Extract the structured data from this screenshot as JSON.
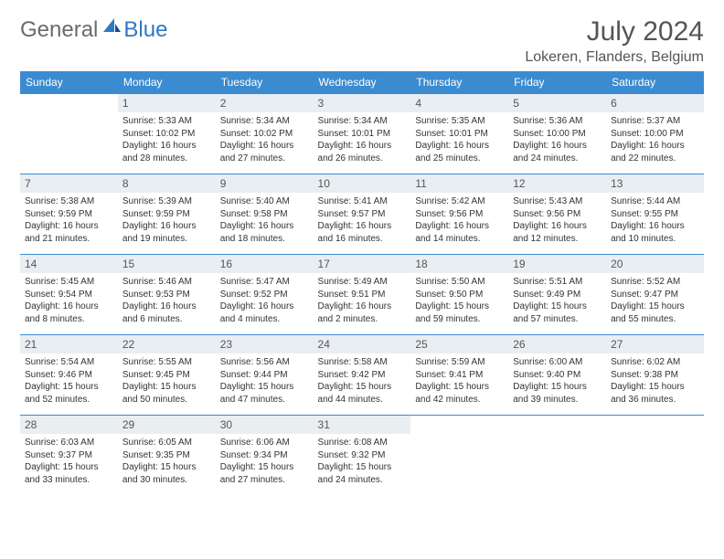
{
  "brand": {
    "general": "General",
    "blue": "Blue"
  },
  "title": "July 2024",
  "location": "Lokeren, Flanders, Belgium",
  "weekdays": [
    "Sunday",
    "Monday",
    "Tuesday",
    "Wednesday",
    "Thursday",
    "Friday",
    "Saturday"
  ],
  "colors": {
    "header_bg": "#3b8bd0",
    "header_text": "#ffffff",
    "daynum_bg": "#e9eef2",
    "border": "#3b8bd0",
    "brand_blue": "#2f78c3",
    "brand_gray": "#6b6b6b"
  },
  "grid": [
    [
      null,
      {
        "n": "1",
        "sr": "Sunrise: 5:33 AM",
        "ss": "Sunset: 10:02 PM",
        "d1": "Daylight: 16 hours",
        "d2": "and 28 minutes."
      },
      {
        "n": "2",
        "sr": "Sunrise: 5:34 AM",
        "ss": "Sunset: 10:02 PM",
        "d1": "Daylight: 16 hours",
        "d2": "and 27 minutes."
      },
      {
        "n": "3",
        "sr": "Sunrise: 5:34 AM",
        "ss": "Sunset: 10:01 PM",
        "d1": "Daylight: 16 hours",
        "d2": "and 26 minutes."
      },
      {
        "n": "4",
        "sr": "Sunrise: 5:35 AM",
        "ss": "Sunset: 10:01 PM",
        "d1": "Daylight: 16 hours",
        "d2": "and 25 minutes."
      },
      {
        "n": "5",
        "sr": "Sunrise: 5:36 AM",
        "ss": "Sunset: 10:00 PM",
        "d1": "Daylight: 16 hours",
        "d2": "and 24 minutes."
      },
      {
        "n": "6",
        "sr": "Sunrise: 5:37 AM",
        "ss": "Sunset: 10:00 PM",
        "d1": "Daylight: 16 hours",
        "d2": "and 22 minutes."
      }
    ],
    [
      {
        "n": "7",
        "sr": "Sunrise: 5:38 AM",
        "ss": "Sunset: 9:59 PM",
        "d1": "Daylight: 16 hours",
        "d2": "and 21 minutes."
      },
      {
        "n": "8",
        "sr": "Sunrise: 5:39 AM",
        "ss": "Sunset: 9:59 PM",
        "d1": "Daylight: 16 hours",
        "d2": "and 19 minutes."
      },
      {
        "n": "9",
        "sr": "Sunrise: 5:40 AM",
        "ss": "Sunset: 9:58 PM",
        "d1": "Daylight: 16 hours",
        "d2": "and 18 minutes."
      },
      {
        "n": "10",
        "sr": "Sunrise: 5:41 AM",
        "ss": "Sunset: 9:57 PM",
        "d1": "Daylight: 16 hours",
        "d2": "and 16 minutes."
      },
      {
        "n": "11",
        "sr": "Sunrise: 5:42 AM",
        "ss": "Sunset: 9:56 PM",
        "d1": "Daylight: 16 hours",
        "d2": "and 14 minutes."
      },
      {
        "n": "12",
        "sr": "Sunrise: 5:43 AM",
        "ss": "Sunset: 9:56 PM",
        "d1": "Daylight: 16 hours",
        "d2": "and 12 minutes."
      },
      {
        "n": "13",
        "sr": "Sunrise: 5:44 AM",
        "ss": "Sunset: 9:55 PM",
        "d1": "Daylight: 16 hours",
        "d2": "and 10 minutes."
      }
    ],
    [
      {
        "n": "14",
        "sr": "Sunrise: 5:45 AM",
        "ss": "Sunset: 9:54 PM",
        "d1": "Daylight: 16 hours",
        "d2": "and 8 minutes."
      },
      {
        "n": "15",
        "sr": "Sunrise: 5:46 AM",
        "ss": "Sunset: 9:53 PM",
        "d1": "Daylight: 16 hours",
        "d2": "and 6 minutes."
      },
      {
        "n": "16",
        "sr": "Sunrise: 5:47 AM",
        "ss": "Sunset: 9:52 PM",
        "d1": "Daylight: 16 hours",
        "d2": "and 4 minutes."
      },
      {
        "n": "17",
        "sr": "Sunrise: 5:49 AM",
        "ss": "Sunset: 9:51 PM",
        "d1": "Daylight: 16 hours",
        "d2": "and 2 minutes."
      },
      {
        "n": "18",
        "sr": "Sunrise: 5:50 AM",
        "ss": "Sunset: 9:50 PM",
        "d1": "Daylight: 15 hours",
        "d2": "and 59 minutes."
      },
      {
        "n": "19",
        "sr": "Sunrise: 5:51 AM",
        "ss": "Sunset: 9:49 PM",
        "d1": "Daylight: 15 hours",
        "d2": "and 57 minutes."
      },
      {
        "n": "20",
        "sr": "Sunrise: 5:52 AM",
        "ss": "Sunset: 9:47 PM",
        "d1": "Daylight: 15 hours",
        "d2": "and 55 minutes."
      }
    ],
    [
      {
        "n": "21",
        "sr": "Sunrise: 5:54 AM",
        "ss": "Sunset: 9:46 PM",
        "d1": "Daylight: 15 hours",
        "d2": "and 52 minutes."
      },
      {
        "n": "22",
        "sr": "Sunrise: 5:55 AM",
        "ss": "Sunset: 9:45 PM",
        "d1": "Daylight: 15 hours",
        "d2": "and 50 minutes."
      },
      {
        "n": "23",
        "sr": "Sunrise: 5:56 AM",
        "ss": "Sunset: 9:44 PM",
        "d1": "Daylight: 15 hours",
        "d2": "and 47 minutes."
      },
      {
        "n": "24",
        "sr": "Sunrise: 5:58 AM",
        "ss": "Sunset: 9:42 PM",
        "d1": "Daylight: 15 hours",
        "d2": "and 44 minutes."
      },
      {
        "n": "25",
        "sr": "Sunrise: 5:59 AM",
        "ss": "Sunset: 9:41 PM",
        "d1": "Daylight: 15 hours",
        "d2": "and 42 minutes."
      },
      {
        "n": "26",
        "sr": "Sunrise: 6:00 AM",
        "ss": "Sunset: 9:40 PM",
        "d1": "Daylight: 15 hours",
        "d2": "and 39 minutes."
      },
      {
        "n": "27",
        "sr": "Sunrise: 6:02 AM",
        "ss": "Sunset: 9:38 PM",
        "d1": "Daylight: 15 hours",
        "d2": "and 36 minutes."
      }
    ],
    [
      {
        "n": "28",
        "sr": "Sunrise: 6:03 AM",
        "ss": "Sunset: 9:37 PM",
        "d1": "Daylight: 15 hours",
        "d2": "and 33 minutes."
      },
      {
        "n": "29",
        "sr": "Sunrise: 6:05 AM",
        "ss": "Sunset: 9:35 PM",
        "d1": "Daylight: 15 hours",
        "d2": "and 30 minutes."
      },
      {
        "n": "30",
        "sr": "Sunrise: 6:06 AM",
        "ss": "Sunset: 9:34 PM",
        "d1": "Daylight: 15 hours",
        "d2": "and 27 minutes."
      },
      {
        "n": "31",
        "sr": "Sunrise: 6:08 AM",
        "ss": "Sunset: 9:32 PM",
        "d1": "Daylight: 15 hours",
        "d2": "and 24 minutes."
      },
      null,
      null,
      null
    ]
  ]
}
